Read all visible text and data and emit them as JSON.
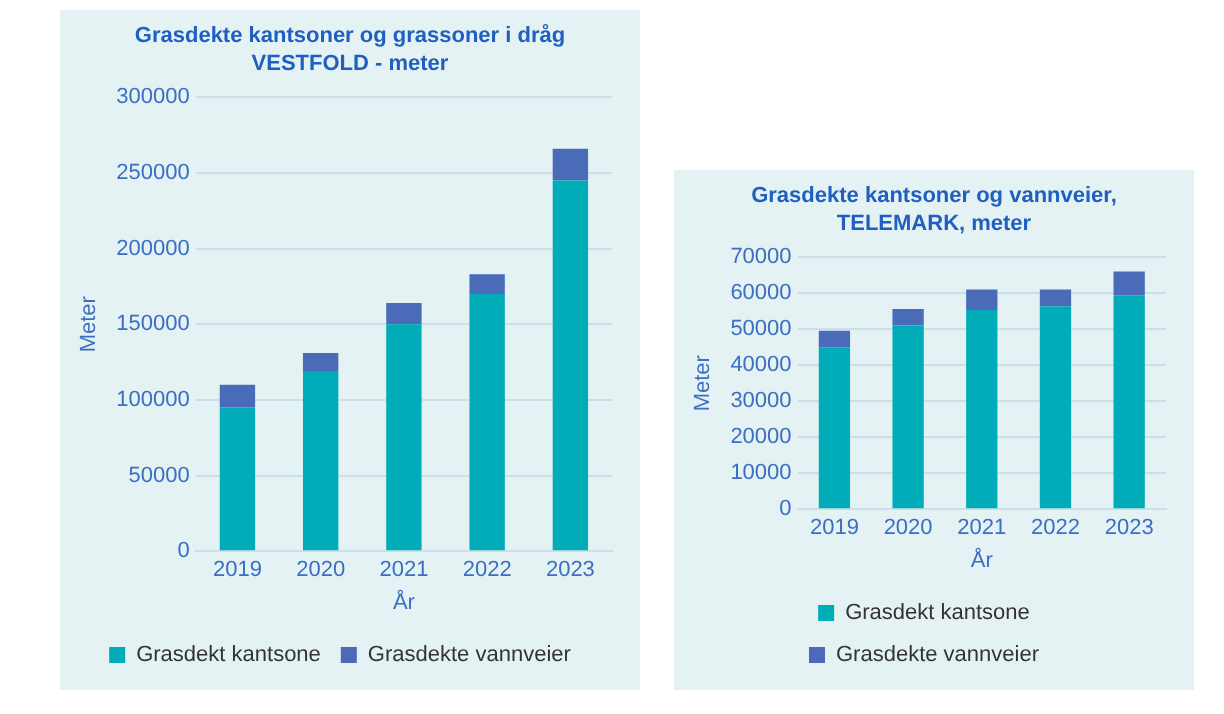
{
  "chart_data": [
    {
      "type": "bar",
      "title": "Grasdekte kantsoner og grassoner i dråg\nVESTFOLD - meter",
      "xlabel": "År",
      "ylabel": "Meter",
      "categories": [
        "2019",
        "2020",
        "2021",
        "2022",
        "2023"
      ],
      "stacked": true,
      "series": [
        {
          "name": "Grasdekt kantsone",
          "color": "#00acb8",
          "values": [
            95000,
            119000,
            150000,
            170000,
            245000
          ]
        },
        {
          "name": "Grasdekte vannveier",
          "color": "#4a6cb8",
          "values": [
            15000,
            12000,
            14000,
            13000,
            21000
          ]
        }
      ],
      "ylim": [
        0,
        300000
      ],
      "yticks": [
        0,
        50000,
        100000,
        150000,
        200000,
        250000,
        300000
      ],
      "grid": "y",
      "legend": "bottom"
    },
    {
      "type": "bar",
      "title": "Grasdekte kantsoner og vannveier,\nTELEMARK, meter",
      "xlabel": "År",
      "ylabel": "Meter",
      "categories": [
        "2019",
        "2020",
        "2021",
        "2022",
        "2023"
      ],
      "stacked": true,
      "series": [
        {
          "name": "Grasdekt kantsone",
          "color": "#00acb8",
          "values": [
            45000,
            51000,
            55300,
            56400,
            59400
          ]
        },
        {
          "name": "Grasdekte vannveier",
          "color": "#4a6cb8",
          "values": [
            4600,
            4600,
            5700,
            4600,
            6600
          ]
        }
      ],
      "ylim": [
        0,
        70000
      ],
      "yticks": [
        0,
        10000,
        20000,
        30000,
        40000,
        50000,
        60000,
        70000
      ],
      "grid": "y",
      "legend": "bottom"
    }
  ]
}
